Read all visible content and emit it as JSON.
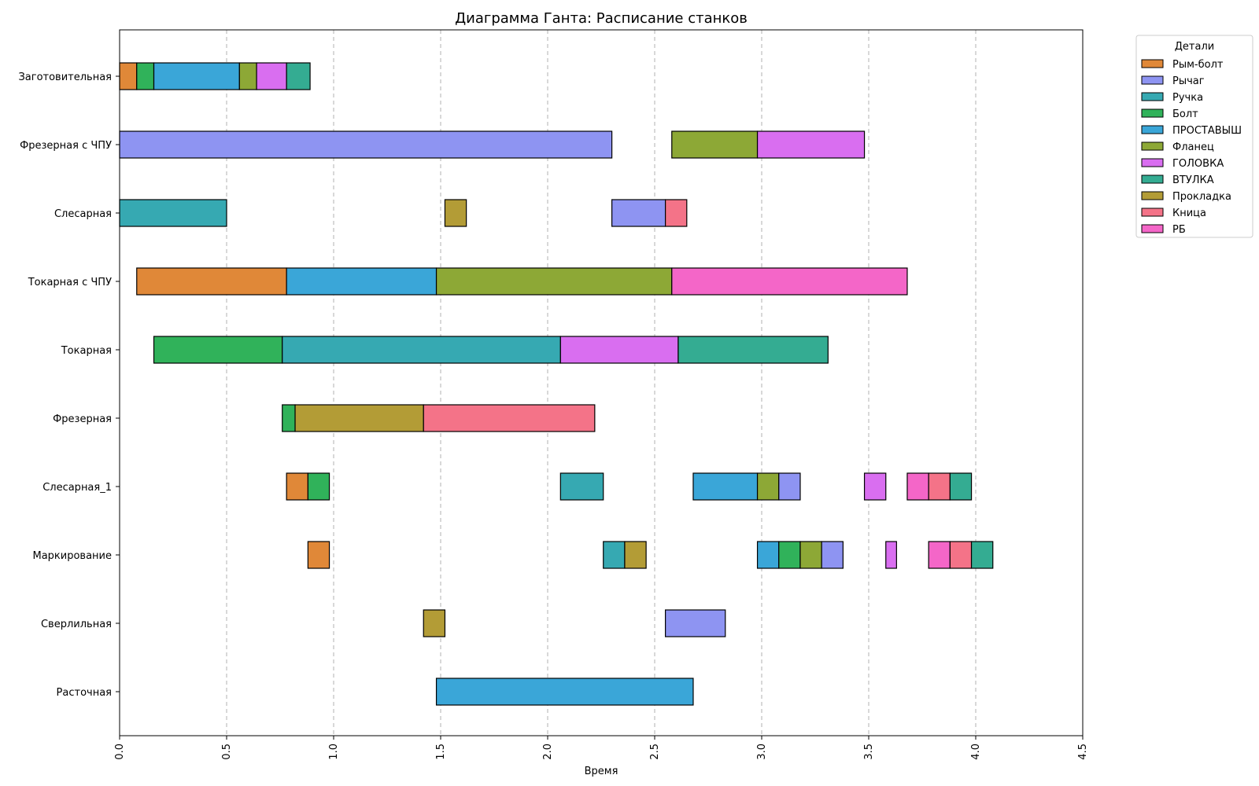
{
  "chart_data": {
    "type": "gantt",
    "title": "Диаграмма Ганта: Расписание станков",
    "xlabel": "Время",
    "ylabel": "",
    "xlim": [
      0,
      4.5
    ],
    "xticks": [
      "0.0",
      "0.5",
      "1.0",
      "1.5",
      "2.0",
      "2.5",
      "3.0",
      "3.5",
      "4.0",
      "4.5"
    ],
    "grid_x": true,
    "legend": {
      "title": "Детали",
      "placement": "outside-top-right",
      "items": [
        {
          "name": "Рым-болт",
          "color": "#e08838"
        },
        {
          "name": "Рычаг",
          "color": "#8e94f2"
        },
        {
          "name": "Ручка",
          "color": "#36a9b2"
        },
        {
          "name": "Болт",
          "color": "#30b25a"
        },
        {
          "name": "ПРОСТАВЫШ",
          "color": "#3aa6d8"
        },
        {
          "name": "Фланец",
          "color": "#8da836"
        },
        {
          "name": "ГОЛОВКА",
          "color": "#d96ef0"
        },
        {
          "name": "ВТУЛКА",
          "color": "#34ac92"
        },
        {
          "name": "Прокладка",
          "color": "#b39c36"
        },
        {
          "name": "Кница",
          "color": "#f47388"
        },
        {
          "name": "РБ",
          "color": "#f466c8"
        }
      ]
    },
    "machines": [
      "Заготовительная",
      "Фрезерная с ЧПУ",
      "Слесарная",
      "Токарная с ЧПУ",
      "Токарная",
      "Фрезерная",
      "Слесарная_1",
      "Маркирование",
      "Сверлильная",
      "Расточная"
    ],
    "tasks": [
      {
        "machine": "Заготовительная",
        "part": "Рым-болт",
        "start": 0.0,
        "end": 0.08
      },
      {
        "machine": "Заготовительная",
        "part": "Болт",
        "start": 0.08,
        "end": 0.16
      },
      {
        "machine": "Заготовительная",
        "part": "ПРОСТАВЫШ",
        "start": 0.16,
        "end": 0.56
      },
      {
        "machine": "Заготовительная",
        "part": "Фланец",
        "start": 0.56,
        "end": 0.64
      },
      {
        "machine": "Заготовительная",
        "part": "ГОЛОВКА",
        "start": 0.64,
        "end": 0.78
      },
      {
        "machine": "Заготовительная",
        "part": "ВТУЛКА",
        "start": 0.78,
        "end": 0.89
      },
      {
        "machine": "Фрезерная с ЧПУ",
        "part": "Рычаг",
        "start": 0.0,
        "end": 2.3
      },
      {
        "machine": "Фрезерная с ЧПУ",
        "part": "Фланец",
        "start": 2.58,
        "end": 2.98
      },
      {
        "machine": "Фрезерная с ЧПУ",
        "part": "ГОЛОВКА",
        "start": 2.98,
        "end": 3.48
      },
      {
        "machine": "Слесарная",
        "part": "Ручка",
        "start": 0.0,
        "end": 0.5
      },
      {
        "machine": "Слесарная",
        "part": "Прокладка",
        "start": 1.52,
        "end": 1.62
      },
      {
        "machine": "Слесарная",
        "part": "Рычаг",
        "start": 2.3,
        "end": 2.55
      },
      {
        "machine": "Слесарная",
        "part": "Кница",
        "start": 2.55,
        "end": 2.65
      },
      {
        "machine": "Токарная с ЧПУ",
        "part": "Рым-болт",
        "start": 0.08,
        "end": 0.78
      },
      {
        "machine": "Токарная с ЧПУ",
        "part": "ПРОСТАВЫШ",
        "start": 0.78,
        "end": 1.48
      },
      {
        "machine": "Токарная с ЧПУ",
        "part": "Фланец",
        "start": 1.48,
        "end": 2.58
      },
      {
        "machine": "Токарная с ЧПУ",
        "part": "РБ",
        "start": 2.58,
        "end": 3.68
      },
      {
        "machine": "Токарная",
        "part": "Болт",
        "start": 0.16,
        "end": 0.76
      },
      {
        "machine": "Токарная",
        "part": "Ручка",
        "start": 0.76,
        "end": 2.06
      },
      {
        "machine": "Токарная",
        "part": "ГОЛОВКА",
        "start": 2.06,
        "end": 2.61
      },
      {
        "machine": "Токарная",
        "part": "ВТУЛКА",
        "start": 2.61,
        "end": 3.31
      },
      {
        "machine": "Фрезерная",
        "part": "Болт",
        "start": 0.76,
        "end": 0.82
      },
      {
        "machine": "Фрезерная",
        "part": "Прокладка",
        "start": 0.82,
        "end": 1.42
      },
      {
        "machine": "Фрезерная",
        "part": "Кница",
        "start": 1.42,
        "end": 2.22
      },
      {
        "machine": "Слесарная_1",
        "part": "Рым-болт",
        "start": 0.78,
        "end": 0.88
      },
      {
        "machine": "Слесарная_1",
        "part": "Болт",
        "start": 0.88,
        "end": 0.98
      },
      {
        "machine": "Слесарная_1",
        "part": "Ручка",
        "start": 2.06,
        "end": 2.26
      },
      {
        "machine": "Слесарная_1",
        "part": "ПРОСТАВЫШ",
        "start": 2.68,
        "end": 2.98
      },
      {
        "machine": "Слесарная_1",
        "part": "Фланец",
        "start": 2.98,
        "end": 3.08
      },
      {
        "machine": "Слесарная_1",
        "part": "Рычаг",
        "start": 3.08,
        "end": 3.18
      },
      {
        "machine": "Слесарная_1",
        "part": "ГОЛОВКА",
        "start": 3.48,
        "end": 3.58
      },
      {
        "machine": "Слесарная_1",
        "part": "РБ",
        "start": 3.68,
        "end": 3.78
      },
      {
        "machine": "Слесарная_1",
        "part": "Кница",
        "start": 3.78,
        "end": 3.88
      },
      {
        "machine": "Слесарная_1",
        "part": "ВТУЛКА",
        "start": 3.88,
        "end": 3.98
      },
      {
        "machine": "Маркирование",
        "part": "Рым-болт",
        "start": 0.88,
        "end": 0.98
      },
      {
        "machine": "Маркирование",
        "part": "Ручка",
        "start": 2.26,
        "end": 2.36
      },
      {
        "machine": "Маркирование",
        "part": "Прокладка",
        "start": 2.36,
        "end": 2.46
      },
      {
        "machine": "Маркирование",
        "part": "ПРОСТАВЫШ",
        "start": 2.98,
        "end": 3.08
      },
      {
        "machine": "Маркирование",
        "part": "Болт",
        "start": 3.08,
        "end": 3.18
      },
      {
        "machine": "Маркирование",
        "part": "Фланец",
        "start": 3.18,
        "end": 3.28
      },
      {
        "machine": "Маркирование",
        "part": "Рычаг",
        "start": 3.28,
        "end": 3.38
      },
      {
        "machine": "Маркирование",
        "part": "ГОЛОВКА",
        "start": 3.58,
        "end": 3.63
      },
      {
        "machine": "Маркирование",
        "part": "РБ",
        "start": 3.78,
        "end": 3.88
      },
      {
        "machine": "Маркирование",
        "part": "Кница",
        "start": 3.88,
        "end": 3.98
      },
      {
        "machine": "Маркирование",
        "part": "ВТУЛКА",
        "start": 3.98,
        "end": 4.08
      },
      {
        "machine": "Сверлильная",
        "part": "Прокладка",
        "start": 1.42,
        "end": 1.52
      },
      {
        "machine": "Сверлильная",
        "part": "Рычаг",
        "start": 2.55,
        "end": 2.83
      },
      {
        "machine": "Расточная",
        "part": "ПРОСТАВЫШ",
        "start": 1.48,
        "end": 2.68
      }
    ]
  }
}
